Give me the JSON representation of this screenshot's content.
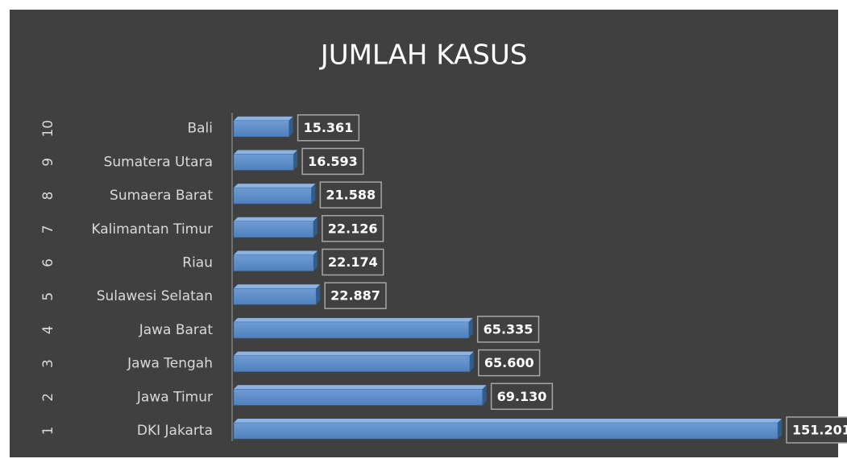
{
  "chart_data": {
    "type": "bar",
    "orientation": "horizontal",
    "title": "JUMLAH KASUS",
    "ranks": [
      1,
      2,
      3,
      4,
      5,
      6,
      7,
      8,
      9,
      10
    ],
    "categories": [
      "DKI Jakarta",
      "Jawa Timur",
      "Jawa Tengah",
      "Jawa Barat",
      "Sulawesi Selatan",
      "Riau",
      "Kalimantan Timur",
      "Sumaera Barat",
      "Sumatera Utara",
      "Bali"
    ],
    "values": [
      151201,
      69130,
      65600,
      65335,
      22887,
      22174,
      22126,
      21588,
      16593,
      15361
    ],
    "value_labels": [
      "151.201",
      "69.130",
      "65.600",
      "65.335",
      "22.887",
      "22.174",
      "22.126",
      "21.588",
      "16.593",
      "15.361"
    ],
    "color": "#4f81bd",
    "grid": false
  }
}
